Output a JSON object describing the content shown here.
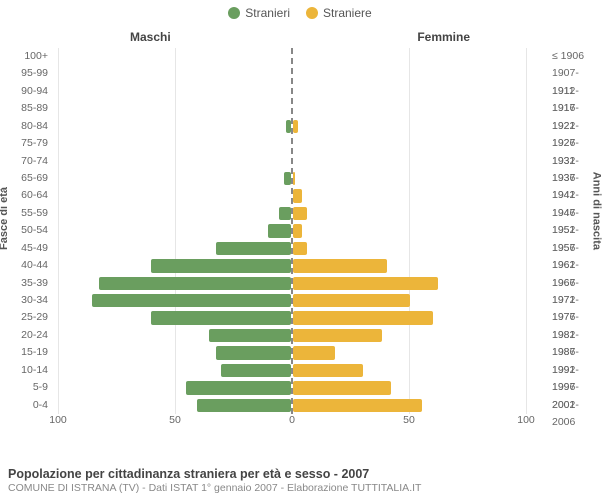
{
  "legend": {
    "series_male": "Stranieri",
    "series_female": "Straniere"
  },
  "header": {
    "males": "Maschi",
    "females": "Femmine"
  },
  "axes": {
    "left_title": "Fasce di età",
    "right_title": "Anni di nascita"
  },
  "footer": {
    "main": "Popolazione per cittadinanza straniera per età e sesso - 2007",
    "sub": "COMUNE DI ISTRANA (TV) - Dati ISTAT 1° gennaio 2007 - Elaborazione TUTTITALIA.IT"
  },
  "chart": {
    "type": "population-pyramid",
    "colors": {
      "male": "#6a9e5f",
      "female": "#ecb53a",
      "grid": "#e6e6e6",
      "center_dash": "#888888",
      "background": "#ffffff"
    },
    "xlim": 100,
    "xtick_step": 50,
    "ticks": [
      "100",
      "50",
      "0",
      "50",
      "100"
    ],
    "label_fontsize": 10.5,
    "title_fontsize": 12.5,
    "rows": [
      {
        "age": "100+",
        "birth": "≤ 1906",
        "male": 0,
        "female": 0
      },
      {
        "age": "95-99",
        "birth": "1907-1911",
        "male": 0,
        "female": 0
      },
      {
        "age": "90-94",
        "birth": "1912-1916",
        "male": 0,
        "female": 0
      },
      {
        "age": "85-89",
        "birth": "1917-1921",
        "male": 0,
        "female": 0
      },
      {
        "age": "80-84",
        "birth": "1922-1926",
        "male": 2,
        "female": 2
      },
      {
        "age": "75-79",
        "birth": "1927-1931",
        "male": 0,
        "female": 0
      },
      {
        "age": "70-74",
        "birth": "1932-1936",
        "male": 0,
        "female": 0
      },
      {
        "age": "65-69",
        "birth": "1937-1941",
        "male": 3,
        "female": 1
      },
      {
        "age": "60-64",
        "birth": "1942-1946",
        "male": 0,
        "female": 4
      },
      {
        "age": "55-59",
        "birth": "1947-1951",
        "male": 5,
        "female": 6
      },
      {
        "age": "50-54",
        "birth": "1952-1956",
        "male": 10,
        "female": 4
      },
      {
        "age": "45-49",
        "birth": "1957-1961",
        "male": 32,
        "female": 6
      },
      {
        "age": "40-44",
        "birth": "1962-1966",
        "male": 60,
        "female": 40
      },
      {
        "age": "35-39",
        "birth": "1967-1971",
        "male": 82,
        "female": 62
      },
      {
        "age": "30-34",
        "birth": "1972-1976",
        "male": 85,
        "female": 50
      },
      {
        "age": "25-29",
        "birth": "1977-1981",
        "male": 60,
        "female": 60
      },
      {
        "age": "20-24",
        "birth": "1982-1986",
        "male": 35,
        "female": 38
      },
      {
        "age": "15-19",
        "birth": "1987-1991",
        "male": 32,
        "female": 18
      },
      {
        "age": "10-14",
        "birth": "1992-1996",
        "male": 30,
        "female": 30
      },
      {
        "age": "5-9",
        "birth": "1997-2001",
        "male": 45,
        "female": 42
      },
      {
        "age": "0-4",
        "birth": "2002-2006",
        "male": 40,
        "female": 55
      }
    ]
  }
}
